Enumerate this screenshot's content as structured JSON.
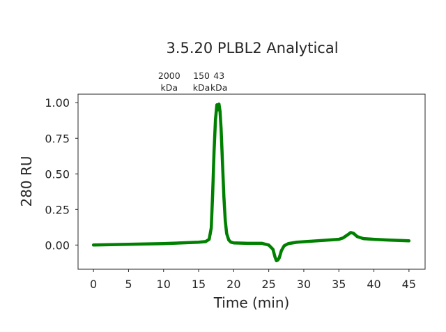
{
  "chart_data": {
    "type": "line",
    "title": "3.5.20 PLBL2 Analytical",
    "xlabel": "Time (min)",
    "ylabel": "280 RU",
    "xlim": [
      -2.2,
      47.3
    ],
    "ylim": [
      -0.17,
      1.06
    ],
    "xticks": [
      0,
      5,
      10,
      15,
      20,
      25,
      30,
      35,
      40,
      45
    ],
    "xtick_labels": [
      "0",
      "5",
      "10",
      "15",
      "20",
      "25",
      "30",
      "35",
      "40",
      "45"
    ],
    "yticks": [
      0.0,
      0.25,
      0.5,
      0.75,
      1.0
    ],
    "ytick_labels": [
      "0.00",
      "0.25",
      "0.50",
      "0.75",
      "1.00"
    ],
    "grid": false,
    "line_color": "#008000",
    "marker_color": "#dc143c",
    "standards": [
      {
        "x": 10.8,
        "line1": "2000",
        "line2": "kDa"
      },
      {
        "x": 15.4,
        "line1": "150",
        "line2": "kDa"
      },
      {
        "x": 17.9,
        "line1": "43",
        "line2": "kDa"
      }
    ],
    "series": [
      {
        "x": [
          0,
          5,
          10,
          15,
          16,
          16.5,
          16.8,
          17.0,
          17.2,
          17.4,
          17.6,
          17.75,
          17.9,
          18.05,
          18.2,
          18.4,
          18.6,
          18.8,
          19.0,
          19.3,
          19.6,
          20,
          22,
          24,
          25,
          25.6,
          25.9,
          26.1,
          26.3,
          26.5,
          26.8,
          27.2,
          27.8,
          29,
          32,
          35,
          35.6,
          36.2,
          36.7,
          37.1,
          37.6,
          38.5,
          40,
          42,
          45
        ],
        "y": [
          0.0,
          0.005,
          0.01,
          0.02,
          0.024,
          0.04,
          0.12,
          0.36,
          0.66,
          0.88,
          0.985,
          0.95,
          0.99,
          0.94,
          0.82,
          0.58,
          0.34,
          0.17,
          0.08,
          0.035,
          0.02,
          0.015,
          0.012,
          0.012,
          0.0,
          -0.03,
          -0.085,
          -0.11,
          -0.105,
          -0.09,
          -0.04,
          -0.005,
          0.01,
          0.02,
          0.03,
          0.04,
          0.05,
          0.07,
          0.088,
          0.082,
          0.06,
          0.045,
          0.04,
          0.035,
          0.03
        ]
      }
    ]
  }
}
